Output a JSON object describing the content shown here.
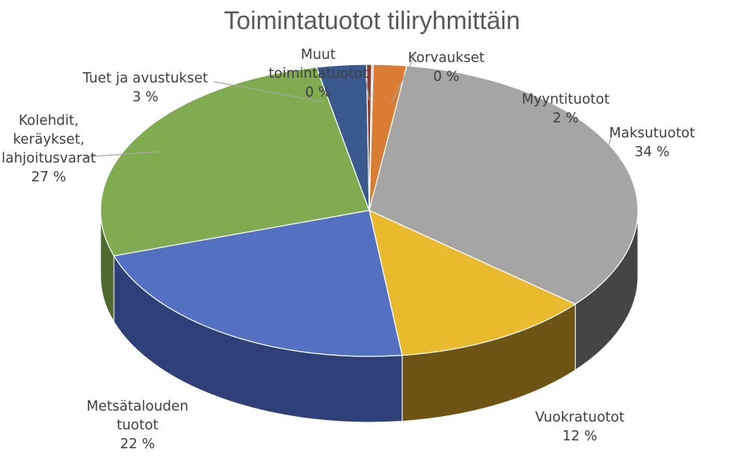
{
  "chart_data": {
    "type": "pie",
    "title": "Toimintatuotot tiliryhmittäin",
    "slices": [
      {
        "name": "Korvaukset",
        "value": 0.1,
        "label_lines": [
          "Korvaukset",
          "0 %"
        ],
        "color": "#A9A9A9",
        "side_color": "#6b6b6b"
      },
      {
        "name": "Myyntituotot",
        "value": 2,
        "label_lines": [
          "Myyntituotot",
          "2 %"
        ],
        "color": "#D97D35",
        "side_color": "#9c5520"
      },
      {
        "name": "Maksutuotot",
        "value": 34,
        "label_lines": [
          "Maksutuotot",
          "34 %"
        ],
        "color": "#A5A5A5",
        "side_color": "#454545"
      },
      {
        "name": "Vuokratuotot",
        "value": 12,
        "label_lines": [
          "Vuokratuotot",
          "12 %"
        ],
        "color": "#E9B92E",
        "side_color": "#6e5414"
      },
      {
        "name": "Metsätalouden tuotot",
        "value": 22,
        "label_lines": [
          "Metsätalouden",
          "tuotot",
          "22 %"
        ],
        "color": "#5470C0",
        "side_color": "#2f3f78"
      },
      {
        "name": "Kolehdit, keräykset, lahjoitusvarat",
        "value": 27,
        "label_lines": [
          "Kolehdit,",
          "keräykset,",
          "lahjoitusvarat",
          "27 %"
        ],
        "color": "#80AB50",
        "side_color": "#4e6a2e"
      },
      {
        "name": "Tuet ja avustukset",
        "value": 3,
        "label_lines": [
          "Tuet ja avustukset",
          "3 %"
        ],
        "color": "#3A5A8E",
        "side_color": "#22365a"
      },
      {
        "name": "Muut toimintatuotot",
        "value": 0.3,
        "label_lines": [
          "Muut",
          "toimintatuotot",
          "0 %"
        ],
        "color": "#8B3A2E",
        "side_color": "#5a241c"
      }
    ],
    "legend": "none",
    "grid": false
  }
}
